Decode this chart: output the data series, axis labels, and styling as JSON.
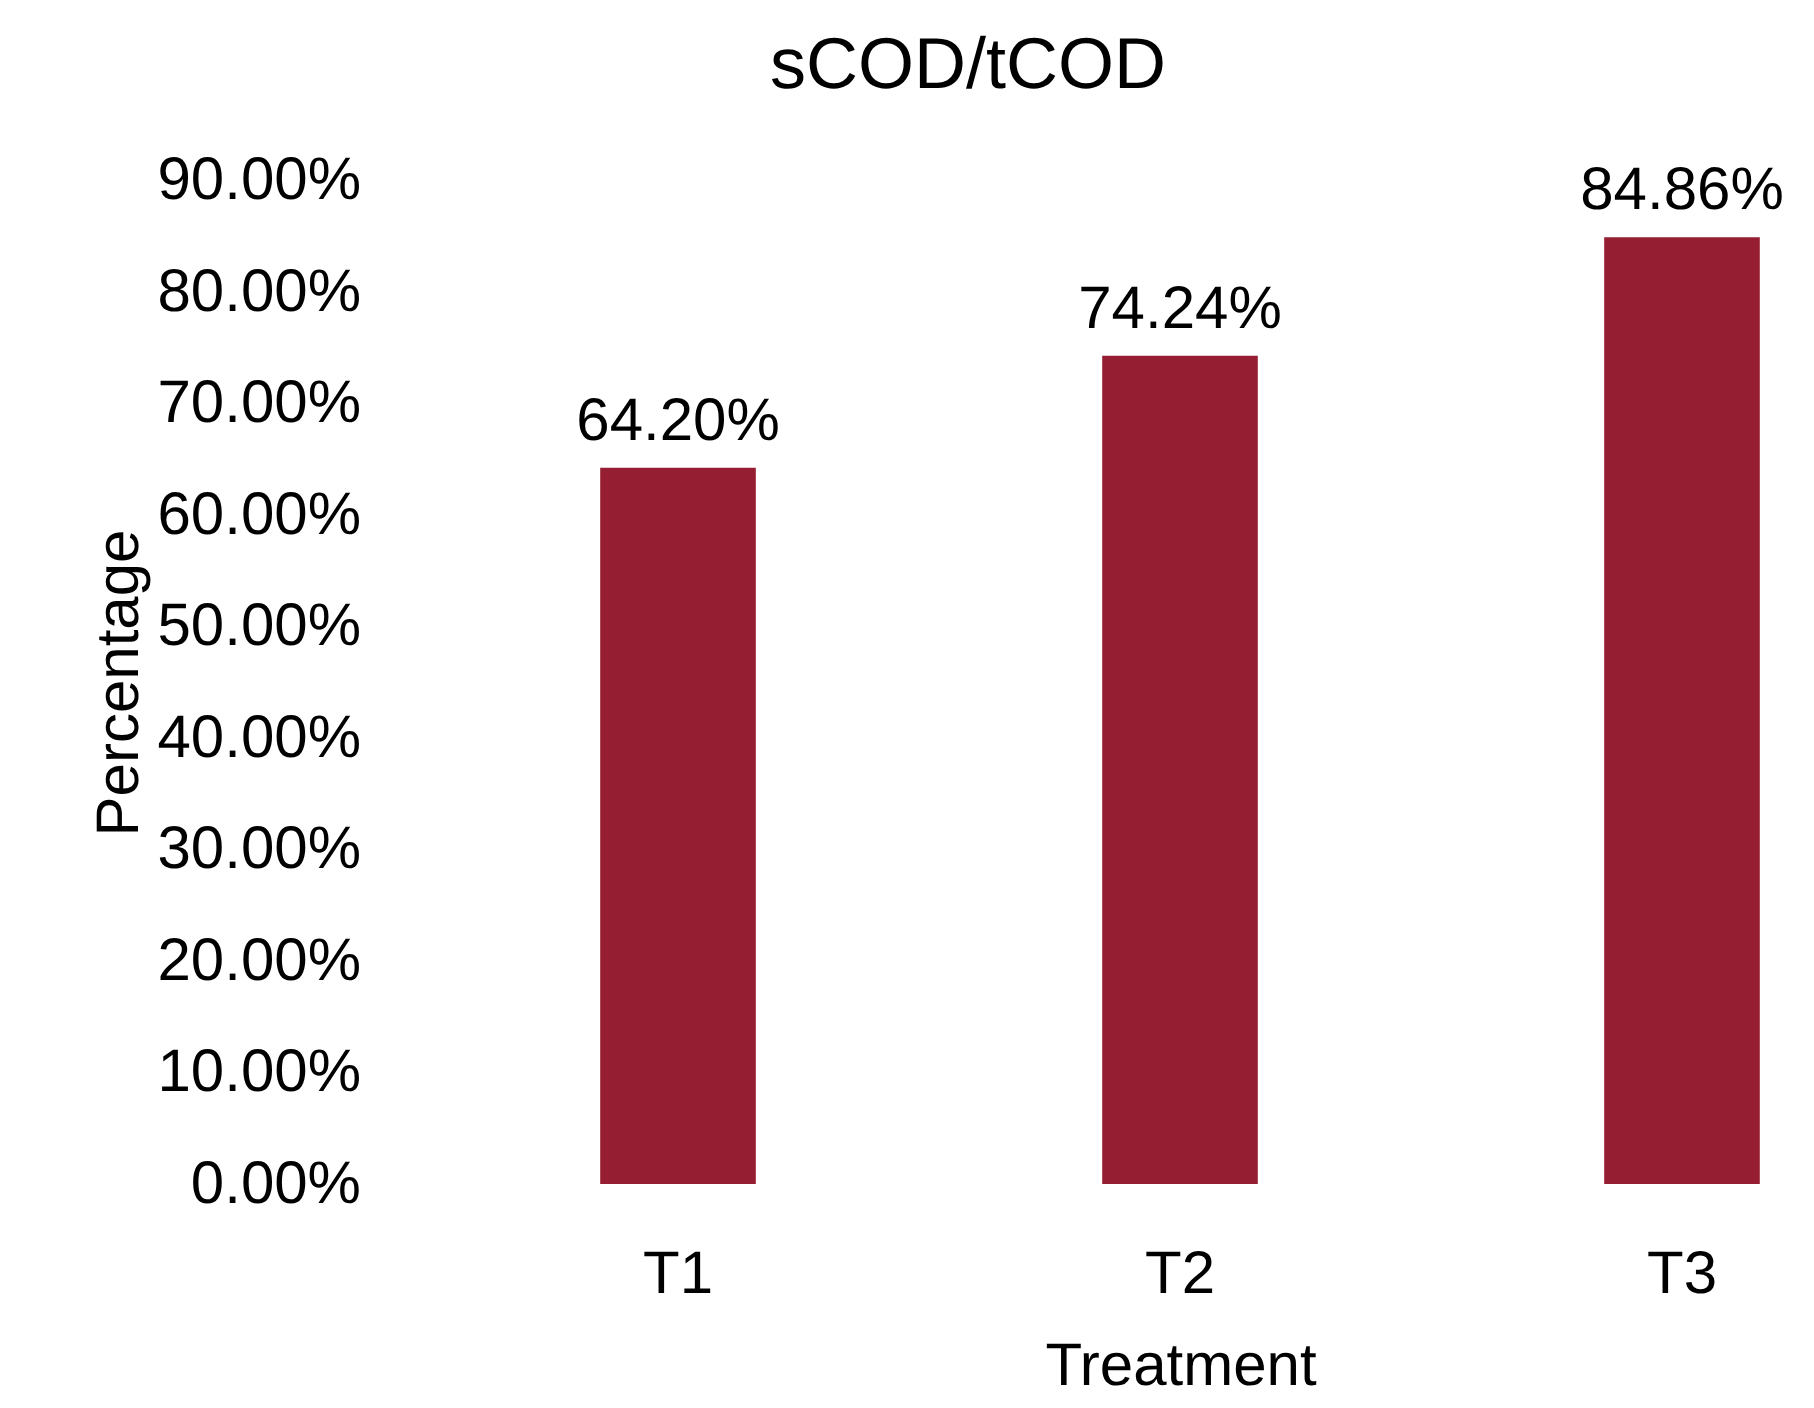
{
  "chart_data": {
    "type": "bar",
    "title": "sCOD/tCOD",
    "xlabel": "Treatment",
    "ylabel": "Percentage",
    "categories": [
      "T1",
      "T2",
      "T3"
    ],
    "values": [
      64.2,
      74.24,
      84.86
    ],
    "value_labels": [
      "64.20%",
      "74.24%",
      "84.86%"
    ],
    "color": "#961e32",
    "ylim": [
      0,
      90
    ],
    "yticks": [
      {
        "value": 0,
        "label": "0.00%"
      },
      {
        "value": 10,
        "label": "10.00%"
      },
      {
        "value": 20,
        "label": "20.00%"
      },
      {
        "value": 30,
        "label": "30.00%"
      },
      {
        "value": 40,
        "label": "40.00%"
      },
      {
        "value": 50,
        "label": "50.00%"
      },
      {
        "value": 60,
        "label": "60.00%"
      },
      {
        "value": 70,
        "label": "70.00%"
      },
      {
        "value": 80,
        "label": "80.00%"
      },
      {
        "value": 90,
        "label": "90.00%"
      }
    ],
    "grid": false
  }
}
